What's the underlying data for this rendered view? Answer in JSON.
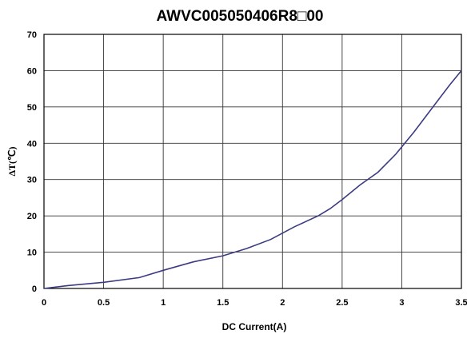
{
  "chart_data": {
    "type": "line",
    "title": "AWVC005050406R8□00",
    "xlabel": "DC Current(A)",
    "ylabel": "ΔT(℃)",
    "xlim": [
      0,
      3.5
    ],
    "ylim": [
      0,
      70
    ],
    "x_ticks": [
      "0",
      "0.5",
      "1",
      "1.5",
      "2",
      "2.5",
      "3",
      "3.5"
    ],
    "y_ticks": [
      "0",
      "10",
      "20",
      "30",
      "40",
      "50",
      "60",
      "70"
    ],
    "grid": true,
    "line_color": "#3b3b82",
    "series": [
      {
        "x": [
          0,
          0.2,
          0.5,
          0.8,
          1.0,
          1.25,
          1.5,
          1.7,
          1.9,
          2.1,
          2.3,
          2.4,
          2.5,
          2.65,
          2.8,
          2.95,
          3.1,
          3.25,
          3.4,
          3.5
        ],
        "values": [
          0,
          0.8,
          1.7,
          3.0,
          5.0,
          7.3,
          9.0,
          11.0,
          13.5,
          17.0,
          20.0,
          22.0,
          24.5,
          28.5,
          32.0,
          37.0,
          43.0,
          49.5,
          56.0,
          60.0
        ]
      }
    ]
  }
}
